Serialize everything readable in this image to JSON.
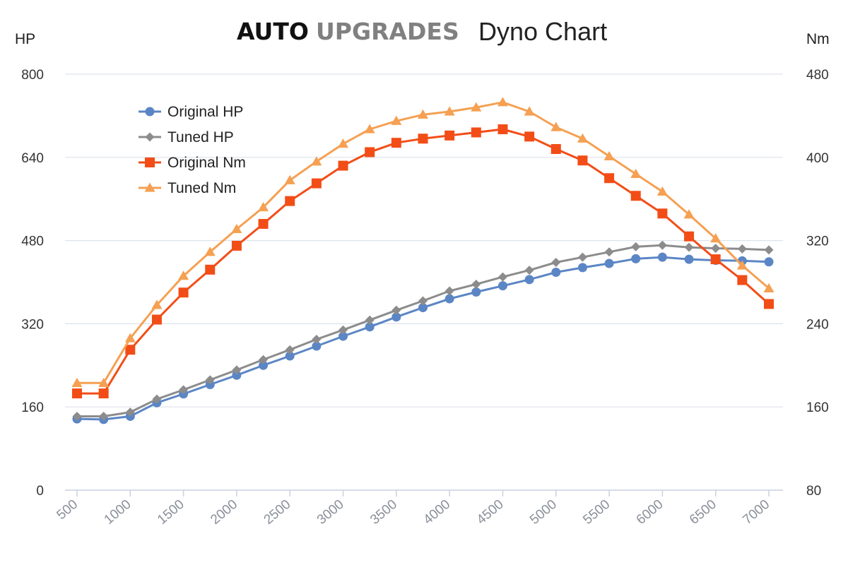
{
  "title": {
    "brand_a": "AUTO",
    "brand_b": "UPGRADES",
    "main": "Dyno Chart"
  },
  "colors": {
    "brand_a": "#111111",
    "brand_b": "#808080",
    "grid": "#dde3ec",
    "axis": "#c9d2e0"
  },
  "chart_data": {
    "type": "line",
    "title": "AUTO UPGRADES Dyno Chart",
    "ylabel_left": "HP",
    "ylabel_right": "Nm",
    "ylim_left": [
      0,
      800
    ],
    "ylim_right": [
      80,
      480
    ],
    "yticks_left": [
      "0",
      "160",
      "320",
      "480",
      "640",
      "800"
    ],
    "yticks_right": [
      "80",
      "160",
      "240",
      "320",
      "400",
      "480"
    ],
    "x": [
      500,
      750,
      1000,
      1250,
      1500,
      1750,
      2000,
      2250,
      2500,
      2750,
      3000,
      3250,
      3500,
      3750,
      4000,
      4250,
      4500,
      4750,
      5000,
      5250,
      5500,
      5750,
      6000,
      6250,
      6500,
      6750,
      7000
    ],
    "xticks": [
      "500",
      "1000",
      "1500",
      "2000",
      "2500",
      "3000",
      "3500",
      "4000",
      "4500",
      "5000",
      "5500",
      "6000",
      "6500",
      "7000"
    ],
    "grid": true,
    "legend_position": "top-left",
    "series": [
      {
        "name": "Original HP",
        "axis": "left",
        "color": "#5b86c5",
        "marker": "circle",
        "values": [
          137,
          136,
          142,
          168,
          185,
          203,
          221,
          240,
          258,
          277,
          296,
          314,
          333,
          351,
          368,
          381,
          393,
          405,
          419,
          428,
          436,
          445,
          448,
          444,
          442,
          441,
          439
        ]
      },
      {
        "name": "Tuned HP",
        "axis": "left",
        "color": "#8c8c8c",
        "marker": "diamond",
        "values": [
          142,
          142,
          150,
          175,
          193,
          212,
          231,
          251,
          270,
          290,
          308,
          327,
          346,
          364,
          383,
          396,
          410,
          423,
          438,
          448,
          458,
          468,
          471,
          467,
          465,
          464,
          462
        ]
      },
      {
        "name": "Original Nm",
        "axis": "right",
        "color": "#f24d17",
        "marker": "square",
        "values": [
          173,
          173,
          215,
          244,
          270,
          292,
          315,
          336,
          358,
          375,
          392,
          405,
          414,
          418,
          421,
          424,
          427,
          420,
          408,
          397,
          380,
          363,
          346,
          324,
          302,
          282,
          259
        ]
      },
      {
        "name": "Tuned Nm",
        "axis": "right",
        "color": "#f5a052",
        "marker": "triangle",
        "values": [
          183,
          183,
          226,
          258,
          286,
          309,
          331,
          352,
          378,
          396,
          413,
          427,
          435,
          441,
          444,
          448,
          453,
          444,
          429,
          418,
          401,
          384,
          367,
          345,
          322,
          296,
          274
        ]
      }
    ]
  }
}
